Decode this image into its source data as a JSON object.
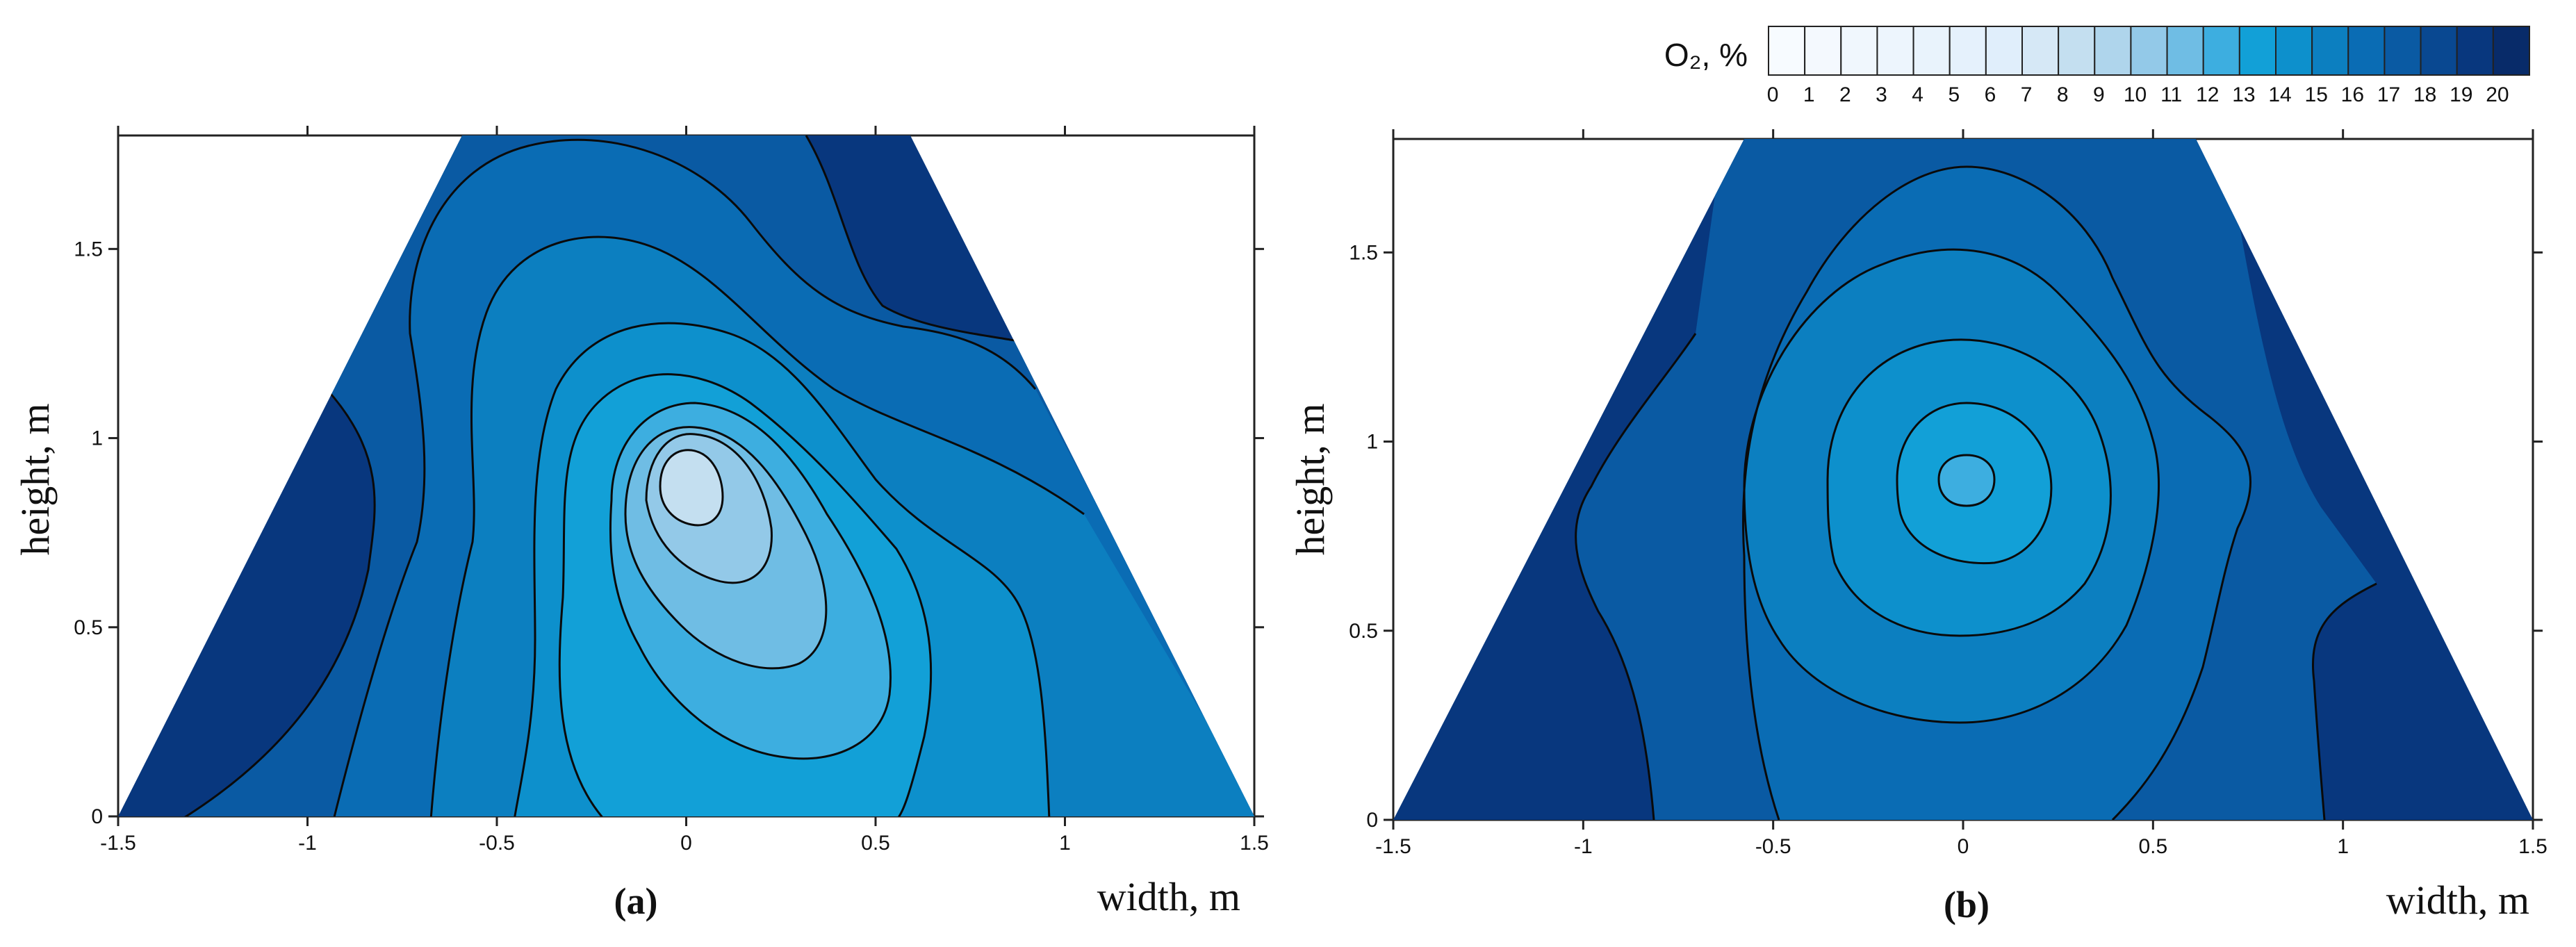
{
  "chart_data": [
    {
      "type": "contour",
      "panel_label": "(a)",
      "xlabel": "width, m",
      "ylabel": "height, m",
      "xlim": [
        -1.5,
        1.5
      ],
      "ylim": [
        0,
        1.8
      ],
      "xticks": [
        -1.5,
        -1,
        -0.5,
        0,
        0.5,
        1,
        1.5
      ],
      "yticks": [
        0,
        0.5,
        1,
        1.5
      ],
      "xtick_labels": [
        "-1.5",
        "-1",
        "-0.5",
        "0",
        "0.5",
        "1",
        "1.5"
      ],
      "ytick_labels": [
        "0",
        "0.5",
        "1",
        "1.5"
      ],
      "domain_shape": "trapezoid",
      "min_location": {
        "x": 0.0,
        "y": 0.88
      },
      "min_value": 8,
      "max_value": 19
    },
    {
      "type": "contour",
      "panel_label": "(b)",
      "xlabel": "width, m",
      "ylabel": "height, m",
      "xlim": [
        -1.5,
        1.5
      ],
      "ylim": [
        0,
        1.8
      ],
      "xticks": [
        -1.5,
        -1,
        -0.5,
        0,
        0.5,
        1,
        1.5
      ],
      "yticks": [
        0,
        0.5,
        1,
        1.5
      ],
      "xtick_labels": [
        "-1.5",
        "-1",
        "-0.5",
        "0",
        "0.5",
        "1",
        "1.5"
      ],
      "ytick_labels": [
        "0",
        "0.5",
        "1",
        "1.5"
      ],
      "domain_shape": "trapezoid",
      "min_location": {
        "x": 0.0,
        "y": 0.9
      },
      "min_value": 13,
      "max_value": 19
    }
  ],
  "colorbar": {
    "title": "O₂, %",
    "labels": [
      "0",
      "1",
      "2",
      "3",
      "4",
      "5",
      "6",
      "7",
      "8",
      "9",
      "10",
      "11",
      "12",
      "13",
      "14",
      "15",
      "16",
      "17",
      "18",
      "19",
      "20"
    ],
    "colors": [
      "#f7fbff",
      "#f4f9fe",
      "#f0f7fd",
      "#edf5fd",
      "#e9f3fc",
      "#e5f1fc",
      "#e0eefb",
      "#d6e8f6",
      "#c4dff0",
      "#afd5ec",
      "#93c9e8",
      "#6fbde4",
      "#3daee0",
      "#12a0d7",
      "#0d90cc",
      "#0c7fc0",
      "#0a6cb4",
      "#0a5aa3",
      "#094891",
      "#08377e",
      "#082b69"
    ]
  }
}
